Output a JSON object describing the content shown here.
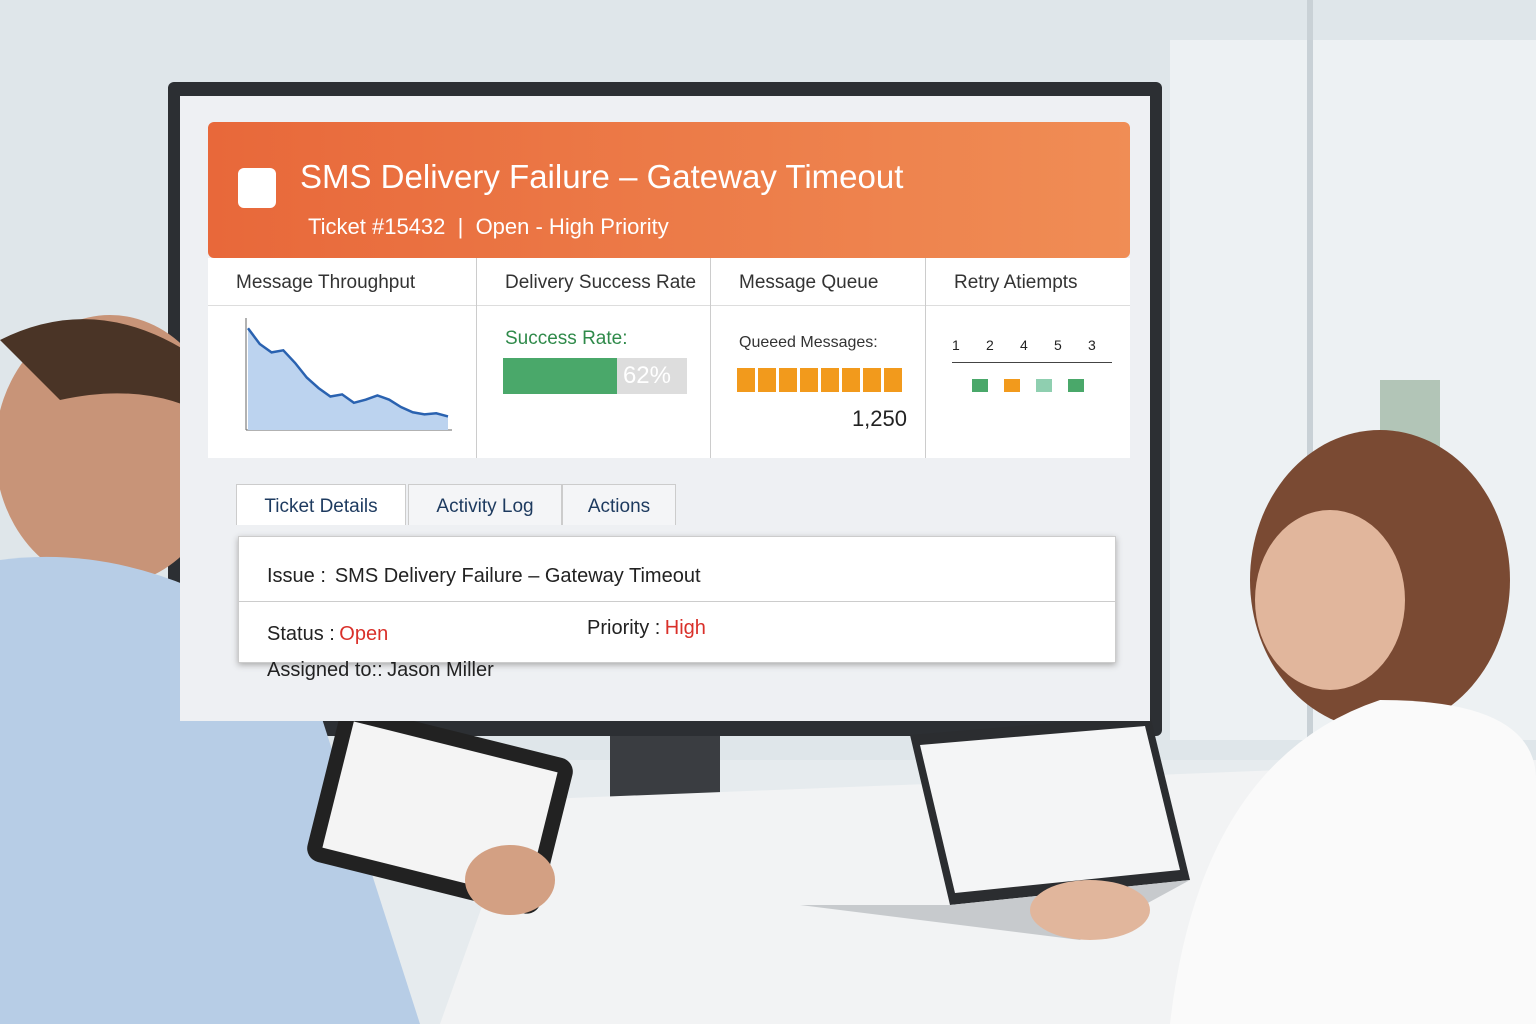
{
  "header": {
    "title": "SMS Delivery Failure – Gateway Timeout",
    "ticket": "Ticket #15432",
    "status": "Open - High Priority"
  },
  "throughput": {
    "title": "Message Throughput",
    "values": [
      95,
      80,
      72,
      74,
      62,
      48,
      38,
      30,
      32,
      24,
      27,
      31,
      27,
      20,
      15,
      13,
      14,
      11
    ],
    "ylim": [
      0,
      100
    ]
  },
  "success": {
    "title": "Delivery Success Rate",
    "label": "Success Rate:",
    "value": 62,
    "value_label": "62%",
    "range": [
      0,
      100
    ]
  },
  "queue": {
    "title": "Message Queue",
    "label": "Queeed Messages:",
    "value": 1250,
    "value_label": "1,250"
  },
  "retry": {
    "title": "Retry Atiempts",
    "labels": [
      1,
      2,
      4,
      5,
      3
    ]
  },
  "tabs": [
    "Ticket Details",
    "Activity Log",
    "Actions"
  ],
  "details": {
    "issue_label": "Issue :",
    "issue": "SMS Delivery Failure – Gateway Timeout",
    "status_label": "Status :",
    "status": "Open",
    "priority_label": "Priority :",
    "priority": "High",
    "assigned_label": "Assigned to::",
    "assigned": "Jason Miller"
  }
}
